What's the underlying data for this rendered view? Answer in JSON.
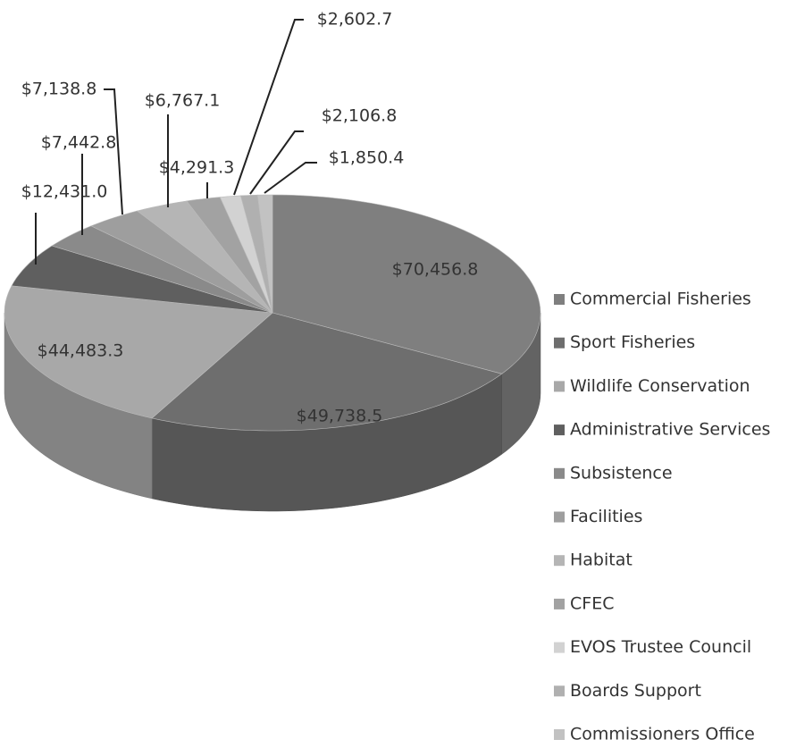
{
  "chart_data": {
    "type": "pie",
    "categories": [
      "Commercial Fisheries",
      "Sport Fisheries",
      "Wildlife Conservation",
      "Administrative Services",
      "Subsistence",
      "Facilities",
      "Habitat",
      "CFEC",
      "EVOS Trustee Council",
      "Boards Support",
      "Commissioners Office"
    ],
    "values": [
      70456.8,
      49738.5,
      44483.3,
      12431.0,
      7442.8,
      7138.8,
      6767.1,
      4291.3,
      2602.7,
      2106.8,
      1850.4
    ],
    "value_labels": [
      "$70,456.8",
      "$49,738.5",
      "$44,483.3",
      "$12,431.0",
      "$7,442.8",
      "$7,138.8",
      "$6,767.1",
      "$4,291.3",
      "$2,602.7",
      "$2,106.8",
      "$1,850.4"
    ],
    "colors": [
      "#7f7f7f",
      "#6e6e6e",
      "#a8a8a8",
      "#5f5f5f",
      "#8a8a8a",
      "#9e9e9e",
      "#b5b5b5",
      "#a2a2a2",
      "#d2d2d2",
      "#b0b0b0",
      "#c2c2c2"
    ],
    "legend": "right"
  }
}
